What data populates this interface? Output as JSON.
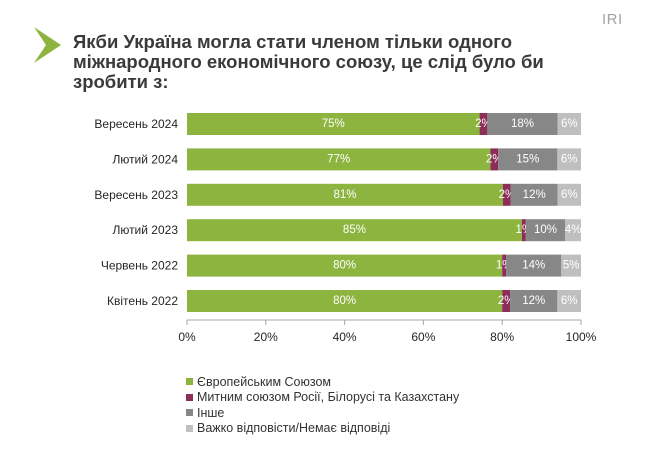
{
  "brand": {
    "text": "IRI"
  },
  "colors": {
    "accent": "#8db43e",
    "title": "#3a3a3a",
    "axis": "#a6a6a6",
    "data_label": "#ffffff"
  },
  "chart_data": {
    "type": "bar",
    "orientation": "horizontal",
    "stacked": true,
    "title": "Якби Україна могла стати членом тільки одного\nміжнародного економічного союзу, це слід було би\nзробити з:",
    "categories": [
      "Вересень 2024",
      "Лютий 2024",
      "Вересень 2023",
      "Лютий 2023",
      "Червень 2022",
      "Квітень 2022"
    ],
    "series": [
      {
        "name": "Європейським Союзом",
        "color": "#8db43e",
        "values": [
          75,
          77,
          81,
          85,
          80,
          80
        ]
      },
      {
        "name": "Митним союзом Росії, Білорусі та Казахстану",
        "color": "#8c2d5a",
        "values": [
          2,
          2,
          2,
          1,
          1,
          2
        ]
      },
      {
        "name": "Інше",
        "color": "#878787",
        "values": [
          18,
          15,
          12,
          10,
          14,
          12
        ]
      },
      {
        "name": "Важко відповісти/Немає відповіді",
        "color": "#bfbfbf",
        "values": [
          6,
          6,
          6,
          4,
          5,
          6
        ]
      }
    ],
    "unit": "%",
    "xlim": [
      0,
      100
    ],
    "x_ticks": [
      0,
      20,
      40,
      60,
      80,
      100
    ],
    "grid": false,
    "legend": "bottom"
  }
}
